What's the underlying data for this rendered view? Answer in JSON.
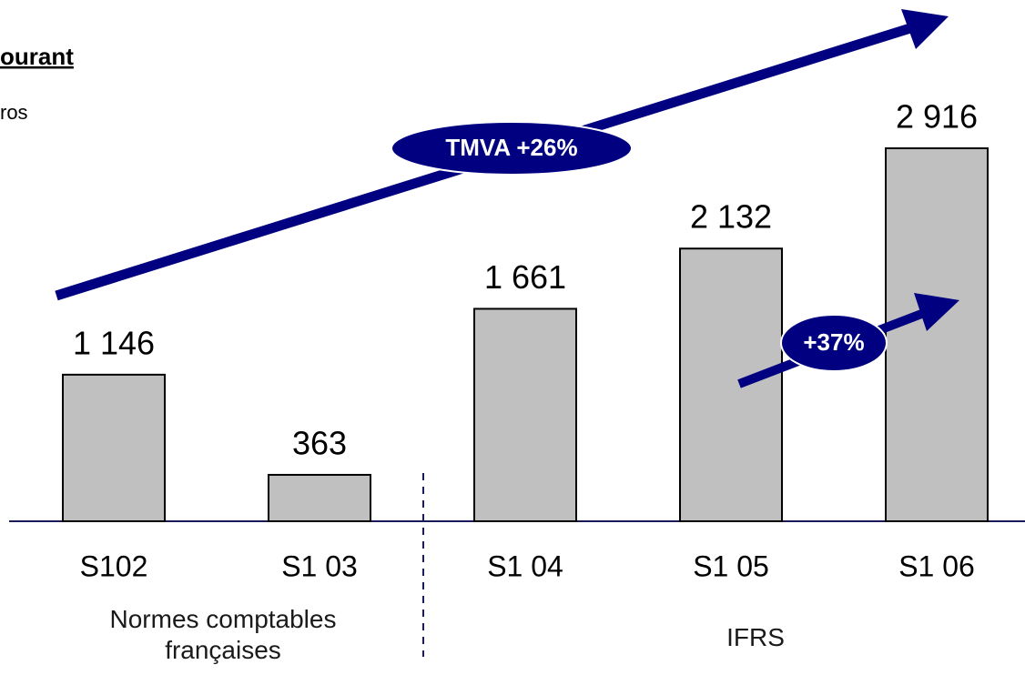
{
  "chart_data": {
    "type": "bar",
    "title": "ourant",
    "subtitle": "ros",
    "categories": [
      "S102",
      "S1 03",
      "S1 04",
      "S1 05",
      "S1 06"
    ],
    "values": [
      1146,
      363,
      1661,
      2132,
      2916
    ],
    "value_labels": [
      "1 146",
      "363",
      "1 661",
      "2 132",
      "2 916"
    ],
    "color": "#c0c0c0",
    "annotations": [
      "TMVA +26%",
      "+37%"
    ],
    "groups": [
      "Normes comptables françaises",
      "IFRS"
    ]
  }
}
